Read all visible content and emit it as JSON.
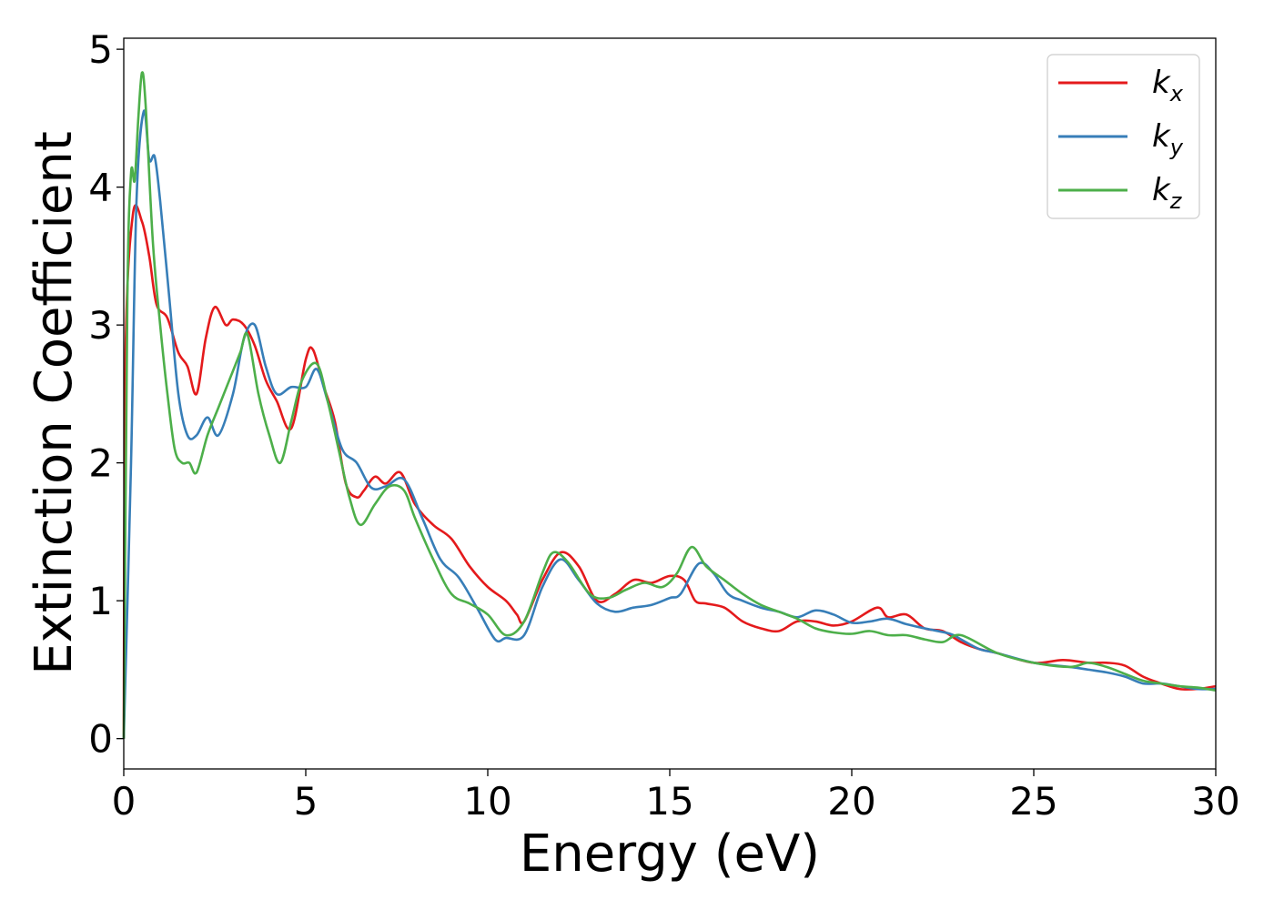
{
  "chart_data": {
    "type": "line",
    "xlabel": "Energy (eV)",
    "ylabel": "Extinction Coefficient",
    "xlim": [
      0,
      30
    ],
    "ylim": [
      -0.22,
      5.08
    ],
    "xticks": [
      0,
      5,
      10,
      15,
      20,
      25,
      30
    ],
    "yticks": [
      0,
      1,
      2,
      3,
      4,
      5
    ],
    "grid": false,
    "legend_position": "top-right",
    "colors": {
      "kx": "#e41a1c",
      "ky": "#377eb8",
      "kz": "#4daf4a"
    },
    "series": [
      {
        "name": "kx",
        "base": "k",
        "sub": "x",
        "color": "#e41a1c",
        "x": [
          0,
          0.05,
          0.25,
          0.5,
          0.7,
          0.9,
          1.2,
          1.5,
          1.75,
          2.0,
          2.25,
          2.5,
          2.8,
          3.0,
          3.3,
          3.6,
          3.9,
          4.2,
          4.6,
          5.0,
          5.2,
          5.5,
          5.8,
          6.1,
          6.4,
          6.6,
          6.9,
          7.2,
          7.6,
          8.0,
          8.5,
          9.0,
          9.5,
          10.0,
          10.5,
          10.8,
          11.0,
          11.5,
          12.0,
          12.5,
          13.0,
          13.5,
          14.0,
          14.5,
          15.0,
          15.4,
          15.7,
          16.0,
          16.5,
          17.0,
          17.5,
          18.0,
          18.5,
          19.0,
          19.5,
          20.0,
          20.7,
          21.0,
          21.5,
          22.0,
          22.5,
          23.0,
          23.5,
          24.0,
          25.0,
          25.8,
          26.5,
          27.0,
          27.5,
          28.0,
          28.5,
          29.0,
          29.5,
          30.0
        ],
        "y": [
          0.0,
          2.8,
          3.8,
          3.75,
          3.5,
          3.15,
          3.05,
          2.8,
          2.7,
          2.5,
          2.9,
          3.13,
          3.0,
          3.04,
          3.0,
          2.85,
          2.6,
          2.45,
          2.25,
          2.75,
          2.82,
          2.55,
          2.3,
          1.85,
          1.75,
          1.8,
          1.9,
          1.85,
          1.93,
          1.7,
          1.55,
          1.45,
          1.25,
          1.1,
          1.0,
          0.9,
          0.85,
          1.15,
          1.35,
          1.25,
          1.0,
          1.05,
          1.15,
          1.13,
          1.18,
          1.15,
          1.0,
          0.98,
          0.95,
          0.85,
          0.8,
          0.78,
          0.85,
          0.85,
          0.82,
          0.85,
          0.95,
          0.88,
          0.9,
          0.8,
          0.78,
          0.7,
          0.65,
          0.62,
          0.55,
          0.57,
          0.55,
          0.55,
          0.53,
          0.45,
          0.4,
          0.36,
          0.36,
          0.38
        ]
      },
      {
        "name": "ky",
        "base": "k",
        "sub": "y",
        "color": "#377eb8",
        "x": [
          0,
          0.2,
          0.35,
          0.55,
          0.7,
          0.85,
          1.0,
          1.25,
          1.5,
          1.75,
          2.0,
          2.3,
          2.6,
          3.0,
          3.3,
          3.6,
          3.9,
          4.2,
          4.6,
          5.0,
          5.3,
          5.6,
          6.0,
          6.4,
          6.8,
          7.2,
          7.7,
          8.2,
          8.7,
          9.2,
          9.7,
          10.2,
          10.5,
          11.0,
          11.5,
          12.0,
          12.5,
          13.0,
          13.5,
          14.0,
          14.5,
          15.0,
          15.3,
          15.8,
          16.2,
          16.6,
          17.0,
          17.5,
          18.0,
          18.5,
          19.0,
          19.5,
          20.0,
          20.5,
          21.0,
          21.5,
          22.0,
          22.7,
          23.0,
          23.5,
          24.0,
          25.0,
          26.0,
          26.5,
          27.0,
          27.5,
          28.0,
          28.5,
          29.0,
          29.5,
          30.0
        ],
        "y": [
          0.0,
          2.0,
          3.9,
          4.55,
          4.2,
          4.22,
          3.9,
          3.2,
          2.5,
          2.2,
          2.2,
          2.33,
          2.2,
          2.5,
          2.9,
          3.0,
          2.7,
          2.5,
          2.55,
          2.55,
          2.68,
          2.45,
          2.1,
          2.0,
          1.82,
          1.83,
          1.88,
          1.6,
          1.3,
          1.17,
          0.95,
          0.72,
          0.73,
          0.75,
          1.1,
          1.3,
          1.15,
          0.98,
          0.92,
          0.95,
          0.97,
          1.02,
          1.05,
          1.27,
          1.2,
          1.05,
          1.0,
          0.95,
          0.92,
          0.88,
          0.93,
          0.9,
          0.84,
          0.85,
          0.87,
          0.83,
          0.8,
          0.76,
          0.72,
          0.65,
          0.62,
          0.55,
          0.52,
          0.5,
          0.48,
          0.45,
          0.4,
          0.4,
          0.38,
          0.36,
          0.36
        ]
      },
      {
        "name": "kz",
        "base": "k",
        "sub": "z",
        "color": "#4daf4a",
        "x": [
          0,
          0.1,
          0.2,
          0.3,
          0.4,
          0.5,
          0.6,
          0.8,
          1.0,
          1.2,
          1.4,
          1.6,
          1.8,
          2.0,
          2.3,
          2.6,
          2.9,
          3.2,
          3.4,
          3.7,
          4.0,
          4.3,
          4.6,
          4.9,
          5.3,
          5.6,
          5.9,
          6.2,
          6.5,
          6.9,
          7.3,
          7.7,
          8.0,
          8.5,
          9.0,
          9.5,
          10.0,
          10.5,
          11.0,
          11.5,
          11.8,
          12.2,
          12.8,
          13.3,
          13.8,
          14.3,
          14.8,
          15.2,
          15.6,
          16.0,
          16.5,
          17.0,
          17.5,
          18.0,
          18.5,
          19.0,
          19.5,
          20.0,
          20.5,
          21.0,
          21.5,
          22.0,
          22.5,
          23.0,
          24.0,
          25.0,
          26.0,
          26.5,
          27.0,
          27.5,
          28.0,
          28.5,
          29.0,
          29.5,
          30.0
        ],
        "y": [
          0.0,
          3.2,
          4.1,
          4.05,
          4.5,
          4.83,
          4.6,
          3.6,
          3.0,
          2.5,
          2.1,
          2.0,
          2.0,
          1.93,
          2.2,
          2.4,
          2.6,
          2.8,
          2.93,
          2.5,
          2.2,
          2.0,
          2.3,
          2.6,
          2.72,
          2.45,
          2.1,
          1.75,
          1.55,
          1.7,
          1.83,
          1.8,
          1.6,
          1.3,
          1.05,
          0.98,
          0.9,
          0.75,
          0.85,
          1.2,
          1.35,
          1.28,
          1.05,
          1.02,
          1.08,
          1.13,
          1.1,
          1.2,
          1.39,
          1.25,
          1.15,
          1.05,
          0.97,
          0.92,
          0.87,
          0.8,
          0.77,
          0.76,
          0.78,
          0.75,
          0.75,
          0.72,
          0.7,
          0.75,
          0.62,
          0.55,
          0.52,
          0.55,
          0.52,
          0.47,
          0.42,
          0.4,
          0.38,
          0.37,
          0.35
        ]
      }
    ]
  }
}
